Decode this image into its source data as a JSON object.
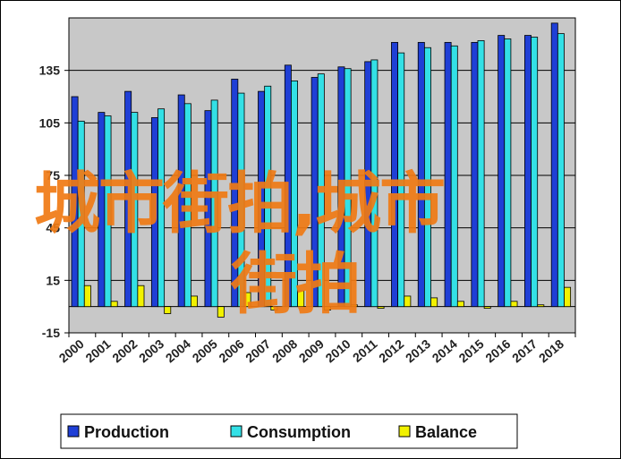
{
  "chart_data": {
    "type": "bar",
    "title": "",
    "xlabel": "",
    "ylabel": "",
    "ylim": [
      -15,
      165
    ],
    "yticks": [
      -15,
      15,
      45,
      75,
      105,
      135
    ],
    "grid": true,
    "legend_position": "bottom",
    "categories": [
      "2000",
      "2001",
      "2002",
      "2003",
      "2004",
      "2005",
      "2006",
      "2007",
      "2008",
      "2009",
      "2010",
      "2011",
      "2012",
      "2013",
      "2014",
      "2015",
      "2016",
      "2017",
      "2018"
    ],
    "series": [
      {
        "name": "Production",
        "color": "#1f3fd6",
        "values": [
          120,
          111,
          123,
          108,
          121,
          112,
          130,
          123,
          138,
          131,
          137,
          140,
          151,
          151,
          151,
          151,
          155,
          155,
          162
        ]
      },
      {
        "name": "Consumption",
        "color": "#33e0e6",
        "values": [
          106,
          109,
          111,
          113,
          116,
          118,
          122,
          126,
          129,
          133,
          136,
          141,
          145,
          148,
          149,
          152,
          153,
          154,
          156
        ]
      },
      {
        "name": "Balance",
        "color": "#f2f200",
        "values": [
          12,
          3,
          12,
          -4,
          6,
          -6,
          8,
          -2,
          9,
          -2,
          1,
          -1,
          6,
          5,
          3,
          -1,
          3,
          1,
          11
        ]
      }
    ]
  },
  "watermark": {
    "line1": "城市街拍,城市",
    "line2": "街拍"
  },
  "colors": {
    "plot_background": "#c8c8c8",
    "chart_background": "#ffffff",
    "gridline": "#000000"
  }
}
